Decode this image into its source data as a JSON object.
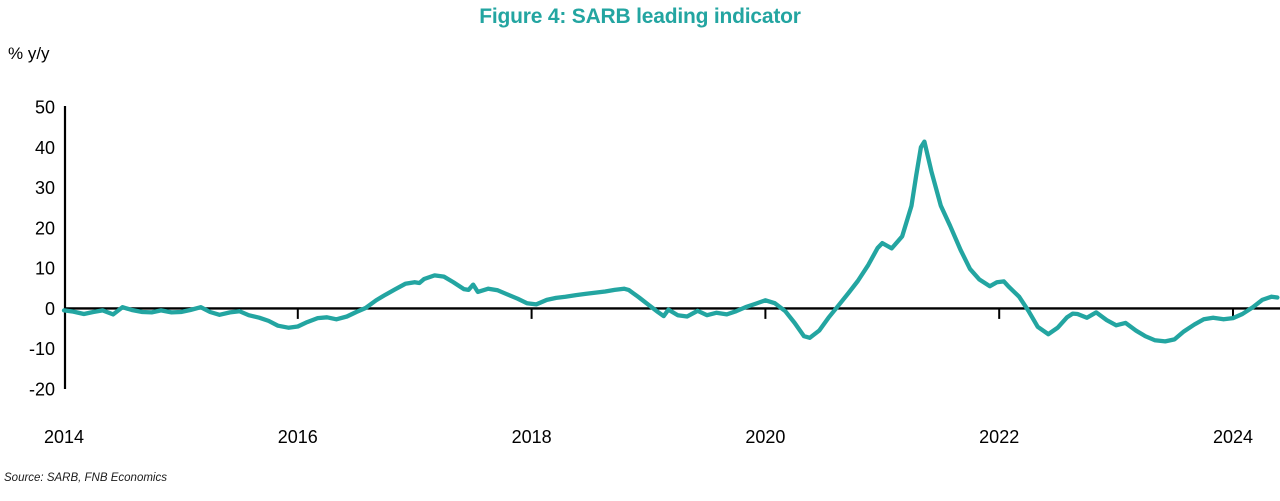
{
  "chart_data": {
    "type": "line",
    "title": "Figure 4: SARB leading indicator",
    "ylabel": "% y/y",
    "xlabel": "",
    "source": "Source: SARB, FNB Economics",
    "ylim": [
      -20,
      50
    ],
    "yticks": [
      50,
      40,
      30,
      20,
      10,
      0,
      -10,
      -20
    ],
    "xticks": [
      2014,
      2016,
      2018,
      2020,
      2022,
      2024
    ],
    "xlim": [
      2014,
      2024.45
    ],
    "grid": false,
    "legend_position": "none",
    "colors": {
      "accent": "#23A5A1",
      "axis": "#000000",
      "background": "#FFFFFF"
    },
    "series": [
      {
        "name": "SARB leading indicator (% y/y)",
        "points": [
          [
            2014.0,
            -0.5
          ],
          [
            2014.08,
            -0.8
          ],
          [
            2014.17,
            -1.4
          ],
          [
            2014.25,
            -0.9
          ],
          [
            2014.33,
            -0.5
          ],
          [
            2014.42,
            -1.5
          ],
          [
            2014.5,
            0.3
          ],
          [
            2014.58,
            -0.4
          ],
          [
            2014.67,
            -0.9
          ],
          [
            2014.75,
            -1.0
          ],
          [
            2014.83,
            -0.5
          ],
          [
            2014.92,
            -1.0
          ],
          [
            2015.0,
            -0.9
          ],
          [
            2015.08,
            -0.4
          ],
          [
            2015.17,
            0.3
          ],
          [
            2015.25,
            -0.9
          ],
          [
            2015.33,
            -1.6
          ],
          [
            2015.42,
            -1.0
          ],
          [
            2015.5,
            -0.7
          ],
          [
            2015.58,
            -1.7
          ],
          [
            2015.67,
            -2.3
          ],
          [
            2015.75,
            -3.1
          ],
          [
            2015.83,
            -4.3
          ],
          [
            2015.92,
            -4.8
          ],
          [
            2016.0,
            -4.5
          ],
          [
            2016.08,
            -3.4
          ],
          [
            2016.17,
            -2.4
          ],
          [
            2016.25,
            -2.2
          ],
          [
            2016.33,
            -2.7
          ],
          [
            2016.42,
            -2.0
          ],
          [
            2016.5,
            -0.9
          ],
          [
            2016.58,
            0.1
          ],
          [
            2016.67,
            2.0
          ],
          [
            2016.75,
            3.4
          ],
          [
            2016.83,
            4.7
          ],
          [
            2016.92,
            6.1
          ],
          [
            2017.0,
            6.5
          ],
          [
            2017.04,
            6.3
          ],
          [
            2017.08,
            7.3
          ],
          [
            2017.17,
            8.2
          ],
          [
            2017.25,
            7.9
          ],
          [
            2017.33,
            6.5
          ],
          [
            2017.42,
            4.8
          ],
          [
            2017.46,
            4.6
          ],
          [
            2017.5,
            5.9
          ],
          [
            2017.54,
            4.1
          ],
          [
            2017.63,
            4.9
          ],
          [
            2017.71,
            4.5
          ],
          [
            2017.79,
            3.5
          ],
          [
            2017.88,
            2.4
          ],
          [
            2017.96,
            1.3
          ],
          [
            2018.04,
            1.0
          ],
          [
            2018.13,
            2.1
          ],
          [
            2018.21,
            2.6
          ],
          [
            2018.29,
            2.9
          ],
          [
            2018.38,
            3.3
          ],
          [
            2018.46,
            3.6
          ],
          [
            2018.54,
            3.9
          ],
          [
            2018.63,
            4.2
          ],
          [
            2018.71,
            4.6
          ],
          [
            2018.79,
            4.9
          ],
          [
            2018.83,
            4.6
          ],
          [
            2018.92,
            2.7
          ],
          [
            2019.0,
            0.9
          ],
          [
            2019.08,
            -0.9
          ],
          [
            2019.13,
            -1.9
          ],
          [
            2019.17,
            -0.3
          ],
          [
            2019.25,
            -1.7
          ],
          [
            2019.33,
            -2.0
          ],
          [
            2019.42,
            -0.6
          ],
          [
            2019.5,
            -1.7
          ],
          [
            2019.58,
            -1.1
          ],
          [
            2019.67,
            -1.5
          ],
          [
            2019.75,
            -0.7
          ],
          [
            2019.83,
            0.3
          ],
          [
            2019.92,
            1.2
          ],
          [
            2020.0,
            2.0
          ],
          [
            2020.08,
            1.3
          ],
          [
            2020.17,
            -0.7
          ],
          [
            2020.25,
            -3.6
          ],
          [
            2020.33,
            -6.9
          ],
          [
            2020.38,
            -7.3
          ],
          [
            2020.46,
            -5.5
          ],
          [
            2020.54,
            -2.3
          ],
          [
            2020.63,
            0.9
          ],
          [
            2020.71,
            3.8
          ],
          [
            2020.79,
            6.8
          ],
          [
            2020.88,
            10.8
          ],
          [
            2020.96,
            15.0
          ],
          [
            2021.0,
            16.2
          ],
          [
            2021.08,
            14.9
          ],
          [
            2021.17,
            17.9
          ],
          [
            2021.25,
            25.5
          ],
          [
            2021.29,
            33.0
          ],
          [
            2021.33,
            40.0
          ],
          [
            2021.36,
            41.4
          ],
          [
            2021.42,
            34.0
          ],
          [
            2021.5,
            25.5
          ],
          [
            2021.58,
            20.5
          ],
          [
            2021.67,
            14.5
          ],
          [
            2021.75,
            9.8
          ],
          [
            2021.83,
            7.2
          ],
          [
            2021.92,
            5.5
          ],
          [
            2021.98,
            6.5
          ],
          [
            2022.04,
            6.7
          ],
          [
            2022.08,
            5.4
          ],
          [
            2022.17,
            2.9
          ],
          [
            2022.25,
            -0.6
          ],
          [
            2022.33,
            -4.6
          ],
          [
            2022.42,
            -6.4
          ],
          [
            2022.5,
            -4.8
          ],
          [
            2022.58,
            -2.2
          ],
          [
            2022.63,
            -1.3
          ],
          [
            2022.67,
            -1.4
          ],
          [
            2022.75,
            -2.3
          ],
          [
            2022.83,
            -1.0
          ],
          [
            2022.92,
            -2.9
          ],
          [
            2023.0,
            -4.2
          ],
          [
            2023.08,
            -3.6
          ],
          [
            2023.17,
            -5.5
          ],
          [
            2023.25,
            -6.9
          ],
          [
            2023.33,
            -7.9
          ],
          [
            2023.42,
            -8.2
          ],
          [
            2023.5,
            -7.7
          ],
          [
            2023.58,
            -5.7
          ],
          [
            2023.67,
            -4.0
          ],
          [
            2023.75,
            -2.7
          ],
          [
            2023.83,
            -2.3
          ],
          [
            2023.92,
            -2.7
          ],
          [
            2024.0,
            -2.4
          ],
          [
            2024.08,
            -1.4
          ],
          [
            2024.17,
            0.3
          ],
          [
            2024.25,
            2.1
          ],
          [
            2024.33,
            2.9
          ],
          [
            2024.38,
            2.7
          ]
        ]
      }
    ]
  }
}
